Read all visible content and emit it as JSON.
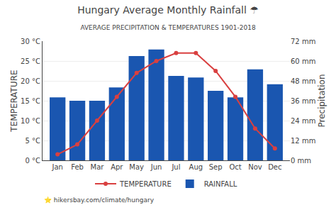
{
  "chart_data": {
    "type": "bar",
    "title": "Hungary Average Monthly Rainfall ☂",
    "subtitle": "AVERAGE PRECIPITATION & TEMPERATURES 1901-2018",
    "footer": "⭐ hikersbay.com/climate/hungary",
    "categories": [
      "Jan",
      "Feb",
      "Mar",
      "Apr",
      "May",
      "Jun",
      "Jul",
      "Aug",
      "Sep",
      "Oct",
      "Nov",
      "Dec"
    ],
    "series": [
      {
        "name": "TEMPERATURE",
        "type": "line",
        "color": "#d94040",
        "marker": "circle",
        "values": [
          1.5,
          4.0,
          10.0,
          16.0,
          22.0,
          25.0,
          27.0,
          27.0,
          22.5,
          16.0,
          8.0,
          3.0
        ]
      },
      {
        "name": "RAINFALL",
        "type": "bar",
        "color": "#1a56b0",
        "axis": "y2",
        "values": [
          38,
          36,
          36,
          44,
          63,
          67,
          51,
          50,
          42,
          38,
          55,
          46
        ]
      }
    ],
    "ylabel": "TEMPERATURE",
    "y2label": "Precipitation",
    "ylim": [
      0,
      30
    ],
    "yticks": [
      {
        "value": 0,
        "label": "0 °C"
      },
      {
        "value": 5,
        "label": "5 °C"
      },
      {
        "value": 10,
        "label": "10 °C"
      },
      {
        "value": 15,
        "label": "15 °C"
      },
      {
        "value": 20,
        "label": "20 °C"
      },
      {
        "value": 25,
        "label": "25 °C"
      },
      {
        "value": 30,
        "label": "30 °C"
      }
    ],
    "y2lim": [
      0,
      72
    ],
    "y2ticks": [
      {
        "value": 0,
        "label": "0 mm"
      },
      {
        "value": 12,
        "label": "12 mm"
      },
      {
        "value": 24,
        "label": "24 mm"
      },
      {
        "value": 36,
        "label": "36 mm"
      },
      {
        "value": 48,
        "label": "48 mm"
      },
      {
        "value": 60,
        "label": "60 mm"
      },
      {
        "value": 72,
        "label": "72 mm"
      }
    ],
    "grid": true,
    "legend": "bottom"
  }
}
